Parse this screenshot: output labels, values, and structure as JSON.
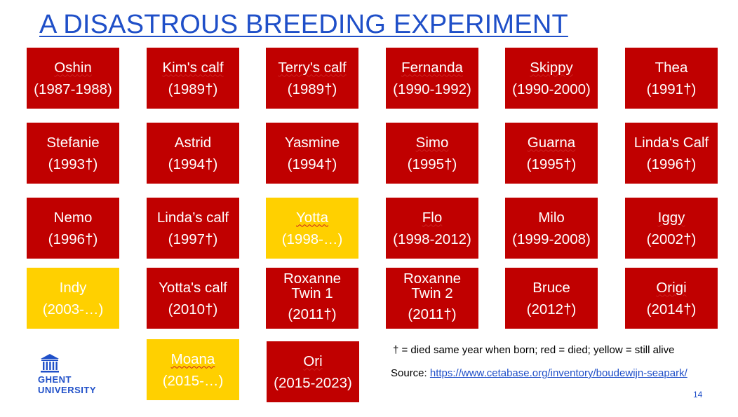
{
  "title": "A DISASTROUS BREEDING EXPERIMENT",
  "colors": {
    "dead": "#c00000",
    "alive": "#ffd000",
    "accent": "#1f4fc8"
  },
  "animals": [
    {
      "name": "Oshin",
      "years": "(1987-1988)",
      "status": "dead"
    },
    {
      "name": "Kim's calf",
      "years": "(1989†)",
      "status": "dead"
    },
    {
      "name": "Terry's calf",
      "years": "(1989†)",
      "status": "dead"
    },
    {
      "name": "Fernanda",
      "years": "(1990-1992)",
      "status": "dead"
    },
    {
      "name": "Skippy",
      "years": "(1990-2000)",
      "status": "dead"
    },
    {
      "name": "Thea",
      "years": "(1991†)",
      "status": "dead"
    },
    {
      "name": "Stefanie",
      "years": "(1993†)",
      "status": "dead"
    },
    {
      "name": "Astrid",
      "years": "(1994†)",
      "status": "dead"
    },
    {
      "name": "Yasmine",
      "years": "(1994†)",
      "status": "dead"
    },
    {
      "name": "Simo",
      "years": "(1995†)",
      "status": "dead"
    },
    {
      "name": "Guarna",
      "years": "(1995†)",
      "status": "dead"
    },
    {
      "name": "Linda's Calf",
      "years": "(1996†)",
      "status": "dead"
    },
    {
      "name": "Nemo",
      "years": "(1996†)",
      "status": "dead"
    },
    {
      "name": "Linda’s calf",
      "years": "(1997†)",
      "status": "dead"
    },
    {
      "name": "Yotta",
      "years": "(1998-…)",
      "status": "alive"
    },
    {
      "name": "Flo",
      "years": "(1998-2012)",
      "status": "dead"
    },
    {
      "name": "Milo",
      "years": "(1999-2008)",
      "status": "dead"
    },
    {
      "name": "Iggy",
      "years": "(2002†)",
      "status": "dead"
    },
    {
      "name": "Indy",
      "years": "(2003-…)",
      "status": "alive"
    },
    {
      "name": "Yotta's calf",
      "years": "(2010†)",
      "status": "dead"
    },
    {
      "name": "Roxanne Twin 1",
      "years": "(2011†)",
      "status": "dead"
    },
    {
      "name": "Roxanne Twin 2",
      "years": "(2011†)",
      "status": "dead"
    },
    {
      "name": "Bruce",
      "years": "(2012†)",
      "status": "dead"
    },
    {
      "name": "Origi",
      "years": "(2014†)",
      "status": "dead"
    },
    {
      "name": "Moana",
      "years": "(2015-…)",
      "status": "alive"
    },
    {
      "name": "Ori",
      "years": "(2015-2023)",
      "status": "dead"
    }
  ],
  "legend": "† = died same year when born; red = died; yellow = still alive",
  "source": {
    "label": "Source: ",
    "link_text": "https://www.cetabase.org/inventory/boudewijn-seapark/"
  },
  "page_number": "14",
  "logo": {
    "icon": "university-building-icon",
    "line1": "GHENT",
    "line2": "UNIVERSITY"
  }
}
